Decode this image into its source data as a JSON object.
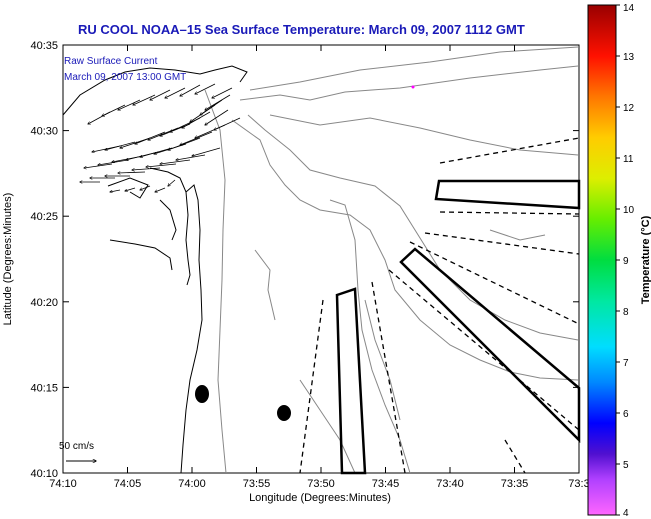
{
  "title": "RU COOL  NOAA–15  Sea Surface Temperature:  March 09, 2007 1112 GMT",
  "legend": {
    "line1": "Raw Surface Current",
    "line2": "March 09, 2007 13:00 GMT"
  },
  "scale_label": "50 cm/s",
  "axes": {
    "xlabel": "Longitude (Degrees:Minutes)",
    "ylabel": "Latitude (Degrees:Minutes)",
    "x_ticks": [
      "74:10",
      "74:05",
      "74:00",
      "73:55",
      "73:50",
      "73:45",
      "73:40",
      "73:35",
      "73:3"
    ],
    "y_ticks": [
      "40:35",
      "40:30",
      "40:25",
      "40:20",
      "40:15",
      "40:10"
    ]
  },
  "colorbar": {
    "label": "Temperature (°C)",
    "ticks": [
      "14",
      "13",
      "12",
      "11",
      "10",
      "9",
      "8",
      "7",
      "6",
      "5",
      "4"
    ],
    "min": 4,
    "max": 14
  }
}
